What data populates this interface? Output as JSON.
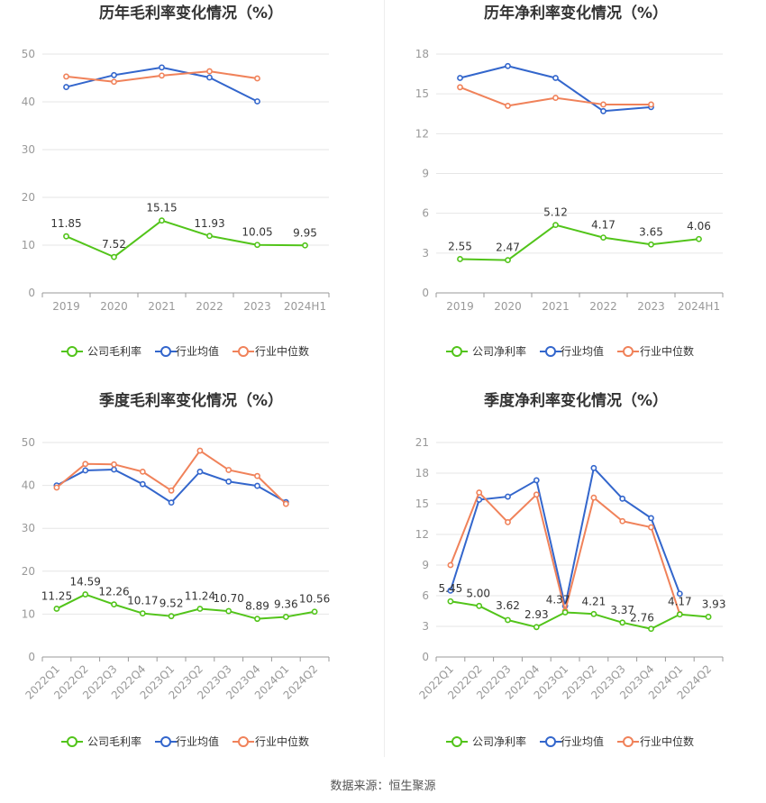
{
  "source": "数据来源：恒生聚源",
  "colors": {
    "company": "#52c41a",
    "industry_avg": "#3366cc",
    "industry_median": "#f0825a"
  },
  "chart_data": [
    {
      "type": "line",
      "title": "历年毛利率变化情况（%）",
      "categories": [
        "2019",
        "2020",
        "2021",
        "2022",
        "2023",
        "2024H1"
      ],
      "ylim": [
        0,
        50
      ],
      "yticks": [
        0,
        10,
        20,
        30,
        40,
        50
      ],
      "grid": true,
      "legend_position": "bottom",
      "series": [
        {
          "name": "公司毛利率",
          "key": "company",
          "values": [
            11.85,
            7.52,
            15.15,
            11.93,
            10.05,
            9.95
          ],
          "labels": [
            "11.85",
            "7.52",
            "15.15",
            "11.93",
            "10.05",
            "9.95"
          ]
        },
        {
          "name": "行业均值",
          "key": "industry_avg",
          "values": [
            43.1,
            45.6,
            47.2,
            45.1,
            40.1,
            null
          ]
        },
        {
          "name": "行业中位数",
          "key": "industry_median",
          "values": [
            45.3,
            44.2,
            45.5,
            46.4,
            44.9,
            null
          ]
        }
      ]
    },
    {
      "type": "line",
      "title": "历年净利率变化情况（%）",
      "categories": [
        "2019",
        "2020",
        "2021",
        "2022",
        "2023",
        "2024H1"
      ],
      "ylim": [
        0,
        18
      ],
      "yticks": [
        0,
        3,
        6,
        9,
        12,
        15,
        18
      ],
      "grid": true,
      "legend_position": "bottom",
      "series": [
        {
          "name": "公司净利率",
          "key": "company",
          "values": [
            2.55,
            2.47,
            5.12,
            4.17,
            3.65,
            4.06
          ],
          "labels": [
            "2.55",
            "2.47",
            "5.12",
            "4.17",
            "3.65",
            "4.06"
          ]
        },
        {
          "name": "行业均值",
          "key": "industry_avg",
          "values": [
            16.2,
            17.1,
            16.2,
            13.7,
            14.0,
            null
          ]
        },
        {
          "name": "行业中位数",
          "key": "industry_median",
          "values": [
            15.5,
            14.1,
            14.7,
            14.2,
            14.2,
            null
          ]
        }
      ]
    },
    {
      "type": "line",
      "title": "季度毛利率变化情况（%）",
      "categories": [
        "2022Q1",
        "2022Q2",
        "2022Q3",
        "2022Q4",
        "2023Q1",
        "2023Q2",
        "2023Q3",
        "2023Q4",
        "2024Q1",
        "2024Q2"
      ],
      "ylim": [
        0,
        50
      ],
      "yticks": [
        0,
        10,
        20,
        30,
        40,
        50
      ],
      "grid": true,
      "legend_position": "bottom",
      "series": [
        {
          "name": "公司毛利率",
          "key": "company",
          "values": [
            11.25,
            14.59,
            12.26,
            10.17,
            9.52,
            11.24,
            10.7,
            8.89,
            9.36,
            10.56
          ],
          "labels": [
            "11.25",
            "14.59",
            "12.26",
            "10.17",
            "9.52",
            "11.24",
            "10.70",
            "8.89",
            "9.36",
            "10.56"
          ]
        },
        {
          "name": "行业均值",
          "key": "industry_avg",
          "values": [
            40.0,
            43.5,
            43.7,
            40.3,
            36.0,
            43.2,
            40.9,
            39.9,
            36.1,
            null
          ]
        },
        {
          "name": "行业中位数",
          "key": "industry_median",
          "values": [
            39.5,
            45.0,
            44.9,
            43.2,
            38.8,
            48.1,
            43.6,
            42.2,
            35.7,
            null
          ]
        }
      ]
    },
    {
      "type": "line",
      "title": "季度净利率变化情况（%）",
      "categories": [
        "2022Q1",
        "2022Q2",
        "2022Q3",
        "2022Q4",
        "2023Q1",
        "2023Q2",
        "2023Q3",
        "2023Q4",
        "2024Q1",
        "2024Q2"
      ],
      "ylim": [
        0,
        21
      ],
      "yticks": [
        0,
        3,
        6,
        9,
        12,
        15,
        18,
        21
      ],
      "grid": true,
      "legend_position": "bottom",
      "series": [
        {
          "name": "公司净利率",
          "key": "company",
          "values": [
            5.45,
            5.0,
            3.62,
            2.93,
            4.37,
            4.21,
            3.37,
            2.76,
            4.17,
            3.93
          ],
          "labels": [
            "5.45",
            "5.00",
            "3.62",
            "2.93",
            "4.37",
            "4.21",
            "3.37",
            "2.76",
            "4.17",
            "3.93"
          ]
        },
        {
          "name": "行业均值",
          "key": "industry_avg",
          "values": [
            6.5,
            15.4,
            15.7,
            17.3,
            5.0,
            18.5,
            15.5,
            13.6,
            6.2,
            null
          ]
        },
        {
          "name": "行业中位数",
          "key": "industry_median",
          "values": [
            9.0,
            16.1,
            13.2,
            15.9,
            4.5,
            15.6,
            13.3,
            12.7,
            4.2,
            null
          ]
        }
      ]
    }
  ]
}
